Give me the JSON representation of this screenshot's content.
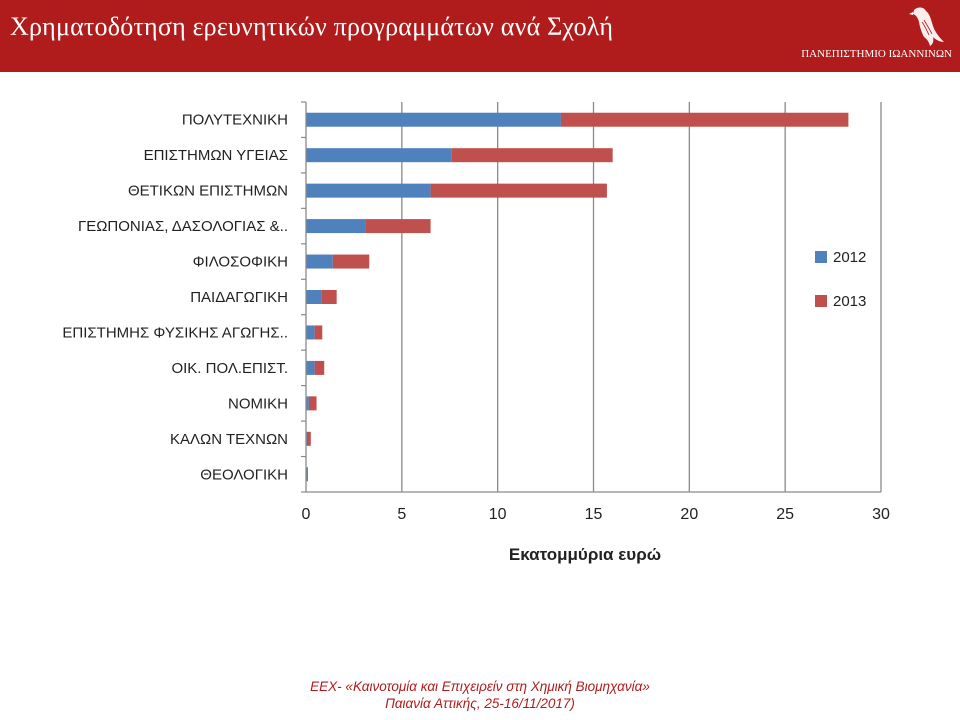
{
  "header": {
    "title": "Χρηματοδότηση ερευνητικών προγραμμάτων ανά Σχολή",
    "university": "ΠΑΝΕΠΙΣΤΗΜΙΟ ΙΩΑΝΝΙΝΩΝ",
    "logo_icon": "eagle-logo-icon"
  },
  "colors": {
    "header_bg": "#b01c1c",
    "series_2012": "#4f81bd",
    "series_2013": "#c0504d",
    "footer_text": "#b01c1c"
  },
  "chart_data": {
    "type": "bar",
    "orientation": "horizontal",
    "stacked": true,
    "title": "",
    "xlabel": "Εκατομμύρια ευρώ",
    "ylabel": "",
    "xlim": [
      0,
      30
    ],
    "xticks": [
      0,
      5,
      10,
      15,
      20,
      25,
      30
    ],
    "grid": "vertical",
    "legend_position": "right",
    "categories": [
      "ΠΟΛΥΤΕΧΝΙΚΗ",
      "ΕΠΙΣΤΗΜΩΝ ΥΓΕΙΑΣ",
      "ΘΕΤΙΚΩΝ ΕΠΙΣΤΗΜΩΝ",
      "ΓΕΩΠΟΝΙΑΣ, ΔΑΣΟΛΟΓΙΑΣ &..",
      "ΦΙΛΟΣΟΦΙΚΗ",
      "ΠΑΙΔΑΓΩΓΙΚΗ",
      "ΕΠΙΣΤΗΜΗΣ ΦΥΣΙΚΗΣ ΑΓΩΓΗΣ..",
      "ΟΙΚ. ΠΟΛ.ΕΠΙΣΤ.",
      "ΝΟΜΙΚΗ",
      "ΚΑΛΩΝ ΤΕΧΝΩΝ",
      "ΘΕΟΛΟΓΙΚΗ"
    ],
    "series": [
      {
        "name": "2012",
        "color": "#4f81bd",
        "values": [
          13.3,
          7.6,
          6.5,
          3.1,
          1.4,
          0.8,
          0.45,
          0.45,
          0.15,
          0.05,
          0.05
        ]
      },
      {
        "name": "2013",
        "color": "#c0504d",
        "values": [
          15.0,
          8.4,
          9.2,
          3.4,
          1.9,
          0.8,
          0.4,
          0.5,
          0.4,
          0.2,
          0.05
        ]
      }
    ]
  },
  "footer": {
    "line1": "ΕΕΧ- «Καινοτομία και Επιχειρείν στη Χημική Βιομηχανία»",
    "line2": "Παιανία Αττικής, 25-16/11/2017)"
  }
}
